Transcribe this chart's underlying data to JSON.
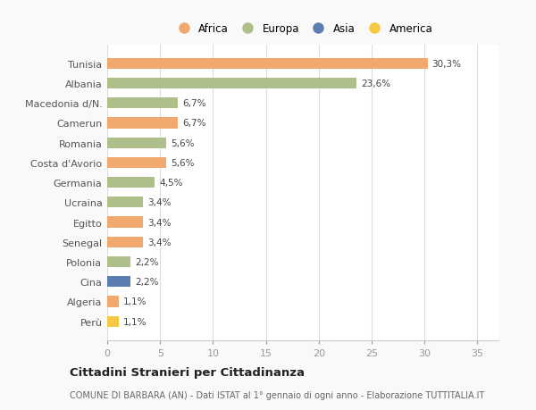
{
  "countries": [
    "Tunisia",
    "Albania",
    "Macedonia d/N.",
    "Camerun",
    "Romania",
    "Costa d'Avorio",
    "Germania",
    "Ucraina",
    "Egitto",
    "Senegal",
    "Polonia",
    "Cina",
    "Algeria",
    "Perù"
  ],
  "values": [
    30.3,
    23.6,
    6.7,
    6.7,
    5.6,
    5.6,
    4.5,
    3.4,
    3.4,
    3.4,
    2.2,
    2.2,
    1.1,
    1.1
  ],
  "labels": [
    "30,3%",
    "23,6%",
    "6,7%",
    "6,7%",
    "5,6%",
    "5,6%",
    "4,5%",
    "3,4%",
    "3,4%",
    "3,4%",
    "2,2%",
    "2,2%",
    "1,1%",
    "1,1%"
  ],
  "continents": [
    "Africa",
    "Europa",
    "Europa",
    "Africa",
    "Europa",
    "Africa",
    "Europa",
    "Europa",
    "Africa",
    "Africa",
    "Europa",
    "Asia",
    "Africa",
    "America"
  ],
  "colors": {
    "Africa": "#F2A96E",
    "Europa": "#AFBF8A",
    "Asia": "#5B7DB1",
    "America": "#F5C842"
  },
  "legend_order": [
    "Africa",
    "Europa",
    "Asia",
    "America"
  ],
  "title": "Cittadini Stranieri per Cittadinanza",
  "subtitle": "COMUNE DI BARBARA (AN) - Dati ISTAT al 1° gennaio di ogni anno - Elaborazione TUTTITALIA.IT",
  "xlabel_ticks": [
    0,
    5,
    10,
    15,
    20,
    25,
    30,
    35
  ],
  "xlim": [
    0,
    37
  ],
  "background_color": "#f9f9f9",
  "bar_background": "#ffffff",
  "bar_height": 0.55,
  "label_fontsize": 7.5,
  "ytick_fontsize": 8,
  "xtick_fontsize": 8
}
